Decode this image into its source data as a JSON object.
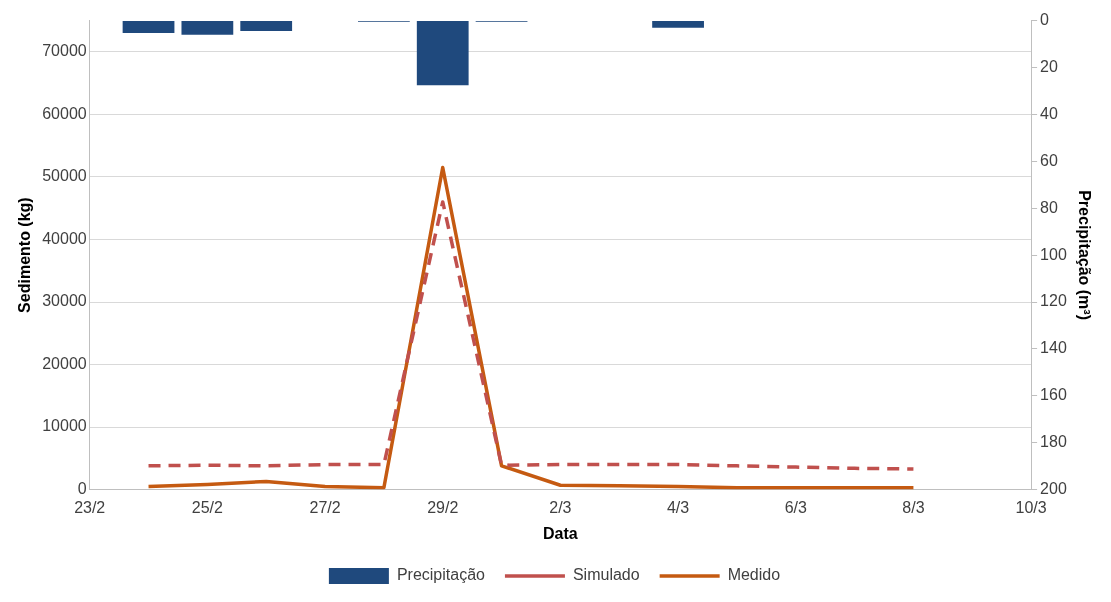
{
  "chart_data": {
    "type": "line",
    "xlabel": "Data",
    "ylabel": "Sedimento (kg)",
    "y2label": "Precipitação (m³)",
    "categories": [
      "23/2",
      null,
      "25/2",
      null,
      "27/2",
      null,
      "29/2",
      null,
      "2/3",
      null,
      "4/3",
      null,
      "6/3",
      null,
      "8/3",
      null,
      "10/3"
    ],
    "ylim": [
      0,
      75000
    ],
    "yticks": [
      0,
      10000,
      20000,
      30000,
      40000,
      50000,
      60000,
      70000
    ],
    "y2lim": [
      200,
      0
    ],
    "y2ticks": [
      0,
      20,
      40,
      60,
      80,
      100,
      120,
      140,
      160,
      180,
      200
    ],
    "grid": "y",
    "legend": "bottom",
    "series": [
      {
        "name": "Precipitação",
        "type": "bar",
        "axis": "y2",
        "color": "#1f497d",
        "values": [
          null,
          5.3,
          6,
          4.4,
          null,
          0.5,
          27.6,
          0.5,
          null,
          null,
          3,
          null,
          null,
          null,
          null,
          null,
          null
        ]
      },
      {
        "name": "Simulado",
        "line_style": "dashed",
        "color": "#c0504d",
        "values": [
          null,
          3800,
          3900,
          3800,
          4000,
          4000,
          46000,
          3900,
          4000,
          4000,
          4000,
          3800,
          3600,
          3400,
          3300,
          null,
          null
        ]
      },
      {
        "name": "Medido",
        "line_style": "solid",
        "color": "#c55a11",
        "values": [
          null,
          500,
          800,
          1300,
          500,
          300,
          51500,
          3800,
          700,
          600,
          500,
          300,
          300,
          300,
          300,
          null,
          null
        ]
      }
    ]
  }
}
